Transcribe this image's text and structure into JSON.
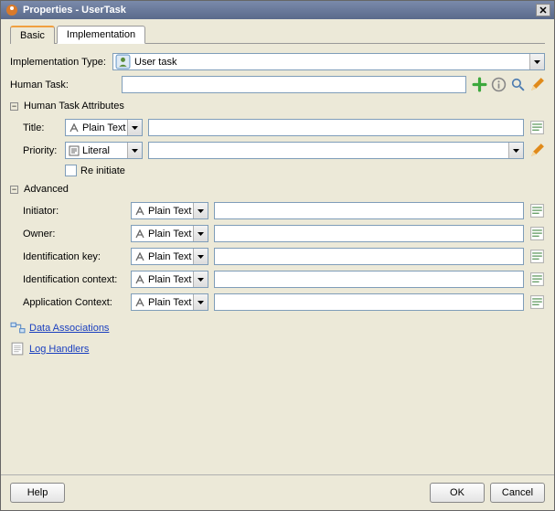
{
  "window": {
    "title": "Properties - UserTask"
  },
  "tabs": {
    "basic": "Basic",
    "implementation": "Implementation"
  },
  "impl_type": {
    "label": "Implementation Type:",
    "value": "User task"
  },
  "human_task": {
    "label": "Human Task:",
    "value": ""
  },
  "group_hta": "Human Task Attributes",
  "title_row": {
    "label": "Title:",
    "mode": "Plain Text",
    "value": ""
  },
  "priority_row": {
    "label": "Priority:",
    "mode": "Literal",
    "value": ""
  },
  "reinitiate": {
    "label": "Re initiate"
  },
  "group_adv": "Advanced",
  "adv": {
    "initiator": {
      "label": "Initiator:",
      "mode": "Plain Text",
      "value": ""
    },
    "owner": {
      "label": "Owner:",
      "mode": "Plain Text",
      "value": ""
    },
    "idkey": {
      "label": "Identification key:",
      "mode": "Plain Text",
      "value": ""
    },
    "idctx": {
      "label": "Identification context:",
      "mode": "Plain Text",
      "value": ""
    },
    "appctx": {
      "label": "Application Context:",
      "mode": "Plain Text",
      "value": ""
    }
  },
  "links": {
    "data_assoc": "Data Associations",
    "log_handlers": "Log Handlers"
  },
  "buttons": {
    "help": "Help",
    "ok": "OK",
    "cancel": "Cancel"
  },
  "colors": {
    "titlebar_grad_top": "#7a8aab",
    "titlebar_grad_bot": "#5a6a8b",
    "panel_bg": "#ece9d8",
    "input_border": "#7f9db9",
    "link": "#1a3fbf",
    "plus_green": "#3ca83c",
    "pencil_orange": "#e08a1a"
  }
}
